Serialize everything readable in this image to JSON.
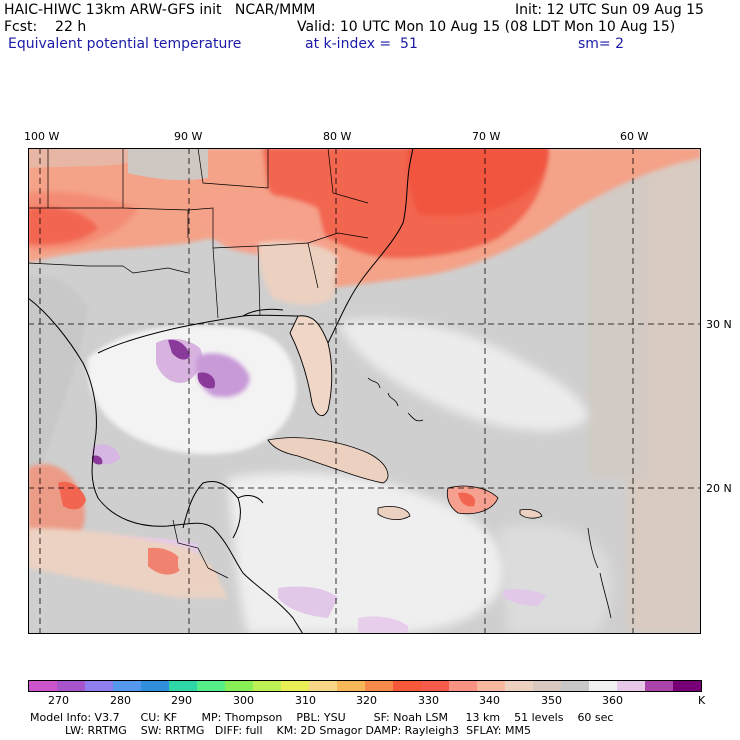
{
  "header": {
    "model_line": "HAIC-HIWC 13km ARW-GFS init   NCAR/MMM",
    "init_line": "Init: 12 UTC Sun 09 Aug 15",
    "fcst_line": "Fcst:    22 h",
    "valid_line": "Valid: 10 UTC Mon 10 Aug 15 (08 LDT Mon 10 Aug 15)",
    "field_name": "Equivalent potential temperature",
    "level_line": "at k-index =  51",
    "smooth_line": "sm= 2"
  },
  "map": {
    "lon_labels": [
      "100 W",
      "90 W",
      "80 W",
      "70 W",
      "60 W"
    ],
    "lat_labels": [
      "30 N",
      "20 N"
    ]
  },
  "colorbar": {
    "colors": [
      "#cc55cc",
      "#a855cc",
      "#8f7fee",
      "#5599ee",
      "#2f8fdd",
      "#2fd7a8",
      "#55ee88",
      "#88ee55",
      "#bdf055",
      "#e8f055",
      "#f8d888",
      "#f8b85a",
      "#f88b4a",
      "#f8583a",
      "#f55a4a",
      "#f89383",
      "#f8b8a0",
      "#ecd0c0",
      "#d8c8c0",
      "#c8c8c8",
      "#f0f0f0",
      "#e8c8e8",
      "#aa44aa",
      "#770077"
    ],
    "ticks": [
      "270",
      "280",
      "290",
      "300",
      "310",
      "320",
      "330",
      "340",
      "350",
      "360",
      "K"
    ]
  },
  "footer": {
    "line1": "Model Info: V3.7      CU: KF       MP: Thompson    PBL: YSU        SF: Noah LSM     13 km    51 levels    60 sec",
    "line2": "          LW: RRTMG    SW: RRTMG   DIFF: full    KM: 2D Smagor DAMP: Rayleigh3  SFLAY: MM5"
  }
}
